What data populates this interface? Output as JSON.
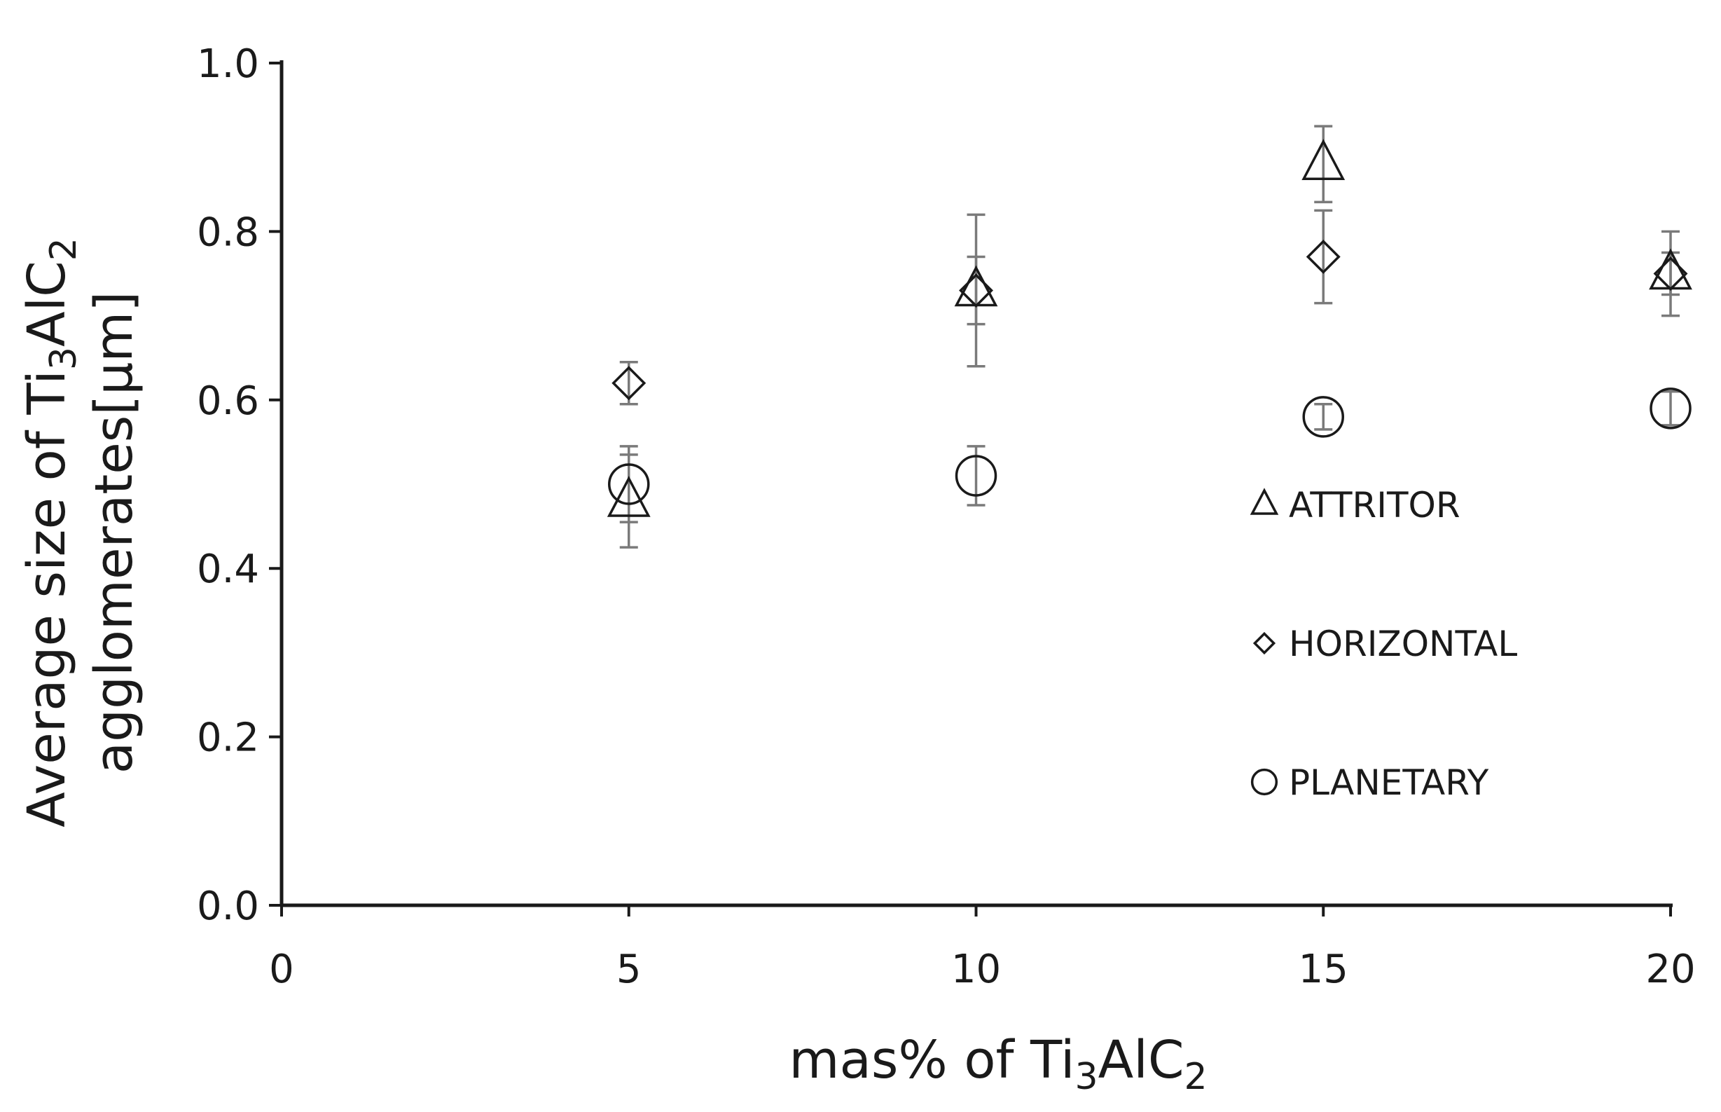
{
  "chart_data": {
    "type": "scatter",
    "xlabel": {
      "pre": "mas% of Ti",
      "sub1": "3",
      "mid": "AlC",
      "sub2": "2"
    },
    "ylabel": {
      "line1_pre": "Average size of Ti",
      "line1_sub1": "3",
      "line1_mid": "AlC",
      "line1_sub2": "2",
      "line2": "agglomerates[μm]"
    },
    "xlim": [
      0,
      20
    ],
    "ylim": [
      0,
      1.0
    ],
    "x_ticks": [
      "0",
      "5",
      "10",
      "15",
      "20"
    ],
    "y_ticks": [
      "0.0",
      "0.2",
      "0.4",
      "0.6",
      "0.8",
      "1.0"
    ],
    "grid": false,
    "legend_position": "right-center",
    "series": [
      {
        "name": "ATTRITOR",
        "marker": "triangle",
        "x": [
          5,
          10,
          15,
          20
        ],
        "y": [
          0.48,
          0.73,
          0.88,
          0.75
        ],
        "err": [
          0.055,
          0.09,
          0.045,
          0.05
        ]
      },
      {
        "name": "HORIZONTAL",
        "marker": "diamond",
        "x": [
          5,
          10,
          15,
          20
        ],
        "y": [
          0.62,
          0.73,
          0.77,
          0.75
        ],
        "err": [
          0.025,
          0.04,
          0.055,
          0.025
        ]
      },
      {
        "name": "PLANETARY",
        "marker": "circle",
        "x": [
          5,
          10,
          15,
          20
        ],
        "y": [
          0.5,
          0.51,
          0.58,
          0.59
        ],
        "err": [
          0.045,
          0.035,
          0.015,
          0.02
        ]
      }
    ],
    "colors": {
      "marker": "#1a1a1a",
      "errorbar": "#7a7a7a",
      "axis": "#1a1a1a"
    }
  }
}
